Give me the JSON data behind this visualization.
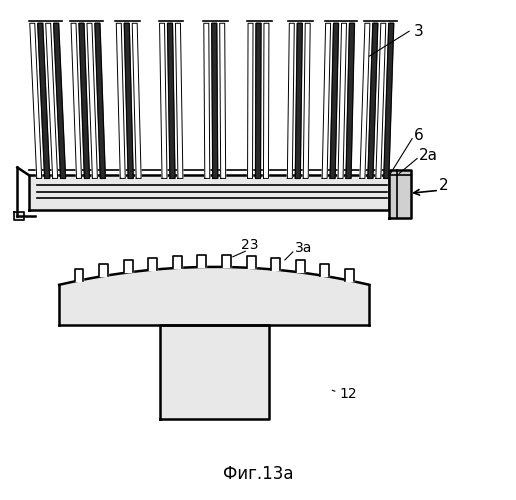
{
  "background_color": "#ffffff",
  "line_color": "#000000",
  "fig_width": 5.16,
  "fig_height": 5.0,
  "title": "Фиг.13a"
}
